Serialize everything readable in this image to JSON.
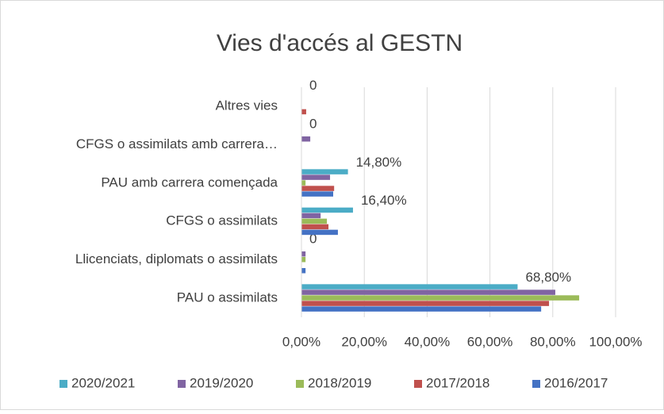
{
  "chart_data": {
    "type": "hbar",
    "title": "Vies d'accés al GESTN",
    "categories": [
      "PAU o assimilats",
      "Llicenciats, diplomats o assimilats",
      "CFGS o assimilats",
      "PAU amb carrera començada",
      "CFGS o assimilats amb carrera…",
      "Altres vies"
    ],
    "series": [
      {
        "name": "2016/2017",
        "color": "#4472c4",
        "values": [
          76.3,
          1.3,
          11.6,
          10.1,
          0,
          0
        ]
      },
      {
        "name": "2017/2018",
        "color": "#c0504d",
        "values": [
          78.8,
          0,
          8.6,
          10.4,
          0,
          1.5
        ]
      },
      {
        "name": "2018/2019",
        "color": "#9bbb59",
        "values": [
          88.4,
          1.3,
          8.1,
          1.3,
          0,
          0
        ]
      },
      {
        "name": "2019/2020",
        "color": "#8064a2",
        "values": [
          80.8,
          1.3,
          6.1,
          9.1,
          2.8,
          0
        ]
      },
      {
        "name": "2020/2021",
        "color": "#4bacc6",
        "values": [
          68.8,
          0,
          16.4,
          14.8,
          0,
          0
        ],
        "value_labels": [
          "68,80%",
          "0",
          "16,40%",
          "14,80%",
          "0",
          "0"
        ]
      }
    ],
    "xlim": [
      0,
      100
    ],
    "xticks": [
      {
        "value": 0,
        "label": "0,00%"
      },
      {
        "value": 20,
        "label": "20,00%"
      },
      {
        "value": 40,
        "label": "40,00%"
      },
      {
        "value": 60,
        "label": "60,00%"
      },
      {
        "value": 80,
        "label": "80,00%"
      },
      {
        "value": 100,
        "label": "100,00%"
      }
    ],
    "grid": true,
    "legend": "bottom"
  }
}
